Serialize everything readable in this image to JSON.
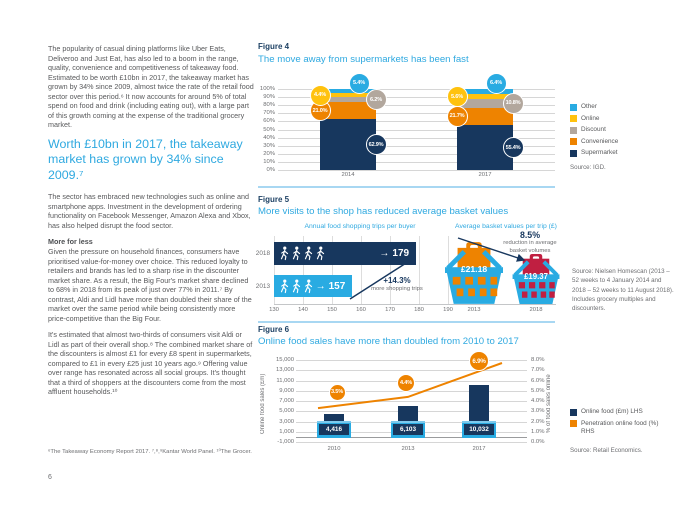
{
  "page": {
    "number": "6"
  },
  "colors": {
    "navy": "#17375E",
    "blue": "#29ABE2",
    "accent": "#2FA9E0",
    "yellow": "#FFC20E",
    "gray": "#B2A79D",
    "orange": "#EE8300",
    "crimson": "#C01F41",
    "body_text": "#58595B",
    "muted_text": "#6D6E71",
    "gridline": "#D6D6D6",
    "divider": "#A8D7F2"
  },
  "left": {
    "p1": "The popularity of casual dining platforms like Uber Eats, Deliveroo and Just Eat, has also led to a boom in the range, quality, convenience and competitiveness of takeaway food. Estimated to be worth £10bn in 2017, the takeaway market has grown by 34% since 2009, almost twice the rate of the retail food sector over this period.⁶ It now accounts for around 5% of total spend on food and drink (including eating out), with a large part of this growth coming at the expense of the traditional grocery market.",
    "quote": "Worth £10bn in 2017, the takeaway market has grown by 34% since 2009.⁷",
    "p2": "The sector has embraced new technologies such as online and smartphone apps. Investment in the development of ordering functionality on Facebook Messenger, Amazon Alexa and Xbox, has also helped disrupt the food sector.",
    "subhead": "More for less",
    "p3": "Given the pressure on household finances, consumers have prioritised value-for-money over choice. This reduced loyalty to retailers and brands has led to a sharp rise in the discounter market share. As a result, the Big Four's market share declined to 68% in 2018 from its peak of just over 77% in 2011.⁷ By contrast, Aldi and Lidl have more than doubled their share of the market over the same period while being consistently more price-competitive than the Big Four.",
    "p4": "It's estimated that almost two-thirds of consumers visit Aldi or Lidl as part of their overall shop.⁸ The combined market share of the discounters is almost £1 for every £8 spent in supermarkets, compared to £1 in every £25 just 10 years ago.⁹ Offering value over range has resonated across all social groups. It's thought that a third of shoppers at the discounters come from the most affluent households.¹⁰",
    "footnote": "⁶The Takeaway Economy Report 2017. ⁷,⁸,⁹Kantar World Panel. ¹⁰The Grocer."
  },
  "sections": {
    "fig4": {
      "label": "Figure 4",
      "source_text": "Source: IGD."
    },
    "fig5": {
      "label": "Figure 5",
      "source_text": "Source: Nielsen Homescan (2013 – 52 weeks to 4 January 2014 and 2018 – 52 weeks to 11 August 2018). Includes grocery multiples and discounters."
    },
    "fig6": {
      "label": "Figure 6",
      "source_text": "Source: Retail Economics."
    }
  },
  "chart_data": [
    {
      "id": "fig4",
      "type": "bar",
      "stacked": true,
      "title": "The move away from supermarkets has been fast",
      "categories": [
        "2014",
        "2017"
      ],
      "series": [
        {
          "name": "Supermarket",
          "color": "navy",
          "values": [
            62.9,
            55.4
          ]
        },
        {
          "name": "Convenience",
          "color": "orange",
          "values": [
            21.0,
            21.7
          ]
        },
        {
          "name": "Discount",
          "color": "gray",
          "values": [
            6.2,
            10.8
          ]
        },
        {
          "name": "Online",
          "color": "yellow",
          "values": [
            4.4,
            5.6
          ]
        },
        {
          "name": "Other",
          "color": "blue",
          "values": [
            5.4,
            6.4
          ]
        }
      ],
      "unit": "%",
      "ylim": [
        0,
        100
      ],
      "y_tick_step": 10,
      "grid": true,
      "legend_position": "right",
      "source": "IGD"
    },
    {
      "id": "fig5",
      "type": "bar",
      "orientation": "horizontal",
      "title": "More visits to the shop has reduced average basket values",
      "left_title": "Annual food shopping trips per buyer",
      "rows": [
        {
          "year": "2018",
          "value": 179,
          "color": "navy",
          "icons": 4
        },
        {
          "year": "2013",
          "value": 157,
          "color": "blue",
          "icons": 3
        }
      ],
      "xlim": [
        130,
        190
      ],
      "x_tick_step": 10,
      "change_pct": "+14.3%",
      "change_sub": "more shopping trips",
      "right_title": "Average basket values per trip (£)",
      "reduction_pct": "8.5%",
      "reduction_sub": "reduction in average basket volumes",
      "baskets": [
        {
          "year": "2013",
          "value": "£21.18",
          "color": "orange"
        },
        {
          "year": "2018",
          "value": "£19.37",
          "color": "crimson"
        }
      ]
    },
    {
      "id": "fig6",
      "type": "bar+line",
      "title": "Online food sales have more than doubled from 2010 to 2017",
      "categories": [
        "2010",
        "2013",
        "2017"
      ],
      "bars": {
        "name": "Online food (£m) LHS",
        "values": [
          4416,
          6103,
          10032
        ],
        "labels": [
          "4,416",
          "6,103",
          "10,032"
        ]
      },
      "line": {
        "name": "Penetration online food (%) RHS",
        "values": [
          3.5,
          4.4,
          6.9
        ]
      },
      "ylim_left": [
        -1000,
        15000
      ],
      "ytick_left_step": 2000,
      "ylim_right": [
        0,
        8
      ],
      "ytick_right_step": 1,
      "ylabel_left": "Online food sales (£m)",
      "ylabel_right": "% of food sales online",
      "grid": true,
      "source": "Retail Economics"
    }
  ]
}
